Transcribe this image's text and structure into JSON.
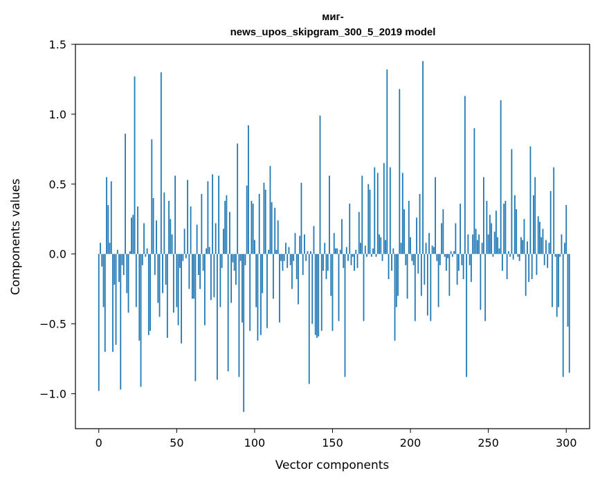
{
  "chart_data": {
    "type": "bar",
    "title_lines": [
      "миг-",
      "news_upos_skipgram_300_5_2019 model"
    ],
    "xlabel": "Vector components",
    "ylabel": "Components values",
    "xlim": [
      -15,
      315
    ],
    "ylim": [
      -1.25,
      1.5
    ],
    "x_ticks": [
      0,
      50,
      100,
      150,
      200,
      250,
      300
    ],
    "x_tick_labels": [
      "0",
      "50",
      "100",
      "150",
      "200",
      "250",
      "300"
    ],
    "y_ticks": [
      -1.0,
      -0.5,
      0.0,
      0.5,
      1.0,
      1.5
    ],
    "y_tick_labels": [
      "−1.0",
      "−0.5",
      "0.0",
      "0.5",
      "1.0",
      "1.5"
    ],
    "bar_color": "#1f77b4",
    "grid": false,
    "values": [
      -0.98,
      0.08,
      -0.09,
      -0.38,
      -0.7,
      0.55,
      0.35,
      0.08,
      0.52,
      -0.7,
      -0.22,
      -0.65,
      0.03,
      -0.2,
      -0.97,
      -0.08,
      -0.15,
      0.86,
      -0.28,
      -0.42,
      0.02,
      0.26,
      0.28,
      1.27,
      -0.38,
      0.34,
      -0.62,
      -0.95,
      -0.08,
      0.22,
      -0.02,
      0.04,
      -0.58,
      -0.55,
      0.82,
      0.4,
      -0.15,
      0.24,
      -0.35,
      -0.45,
      1.3,
      -0.28,
      0.44,
      -0.22,
      -0.6,
      0.38,
      0.25,
      0.14,
      -0.42,
      0.56,
      -0.38,
      -0.51,
      -0.1,
      -0.64,
      -0.05,
      0.18,
      -0.03,
      0.53,
      -0.25,
      0.34,
      -0.32,
      -0.32,
      -0.91,
      0.21,
      -0.15,
      -0.25,
      0.43,
      -0.12,
      -0.51,
      0.04,
      0.52,
      0.05,
      -0.33,
      0.57,
      -0.31,
      0.22,
      -0.9,
      0.56,
      -0.38,
      -0.1,
      0.18,
      0.38,
      0.42,
      -0.84,
      0.3,
      -0.35,
      -0.06,
      -0.12,
      -0.22,
      0.79,
      -0.88,
      -0.05,
      -0.49,
      -1.13,
      -0.08,
      0.49,
      0.92,
      -0.55,
      0.38,
      0.36,
      0.1,
      -0.38,
      -0.62,
      0.43,
      -0.58,
      -0.28,
      0.51,
      0.46,
      -0.53,
      0.03,
      0.63,
      0.37,
      -0.32,
      0.33,
      0.03,
      0.24,
      -0.49,
      -0.05,
      -0.12,
      -0.05,
      0.08,
      -0.1,
      0.05,
      -0.08,
      -0.25,
      -0.05,
      0.15,
      -0.18,
      -0.36,
      0.13,
      0.51,
      -0.15,
      0.14,
      -0.05,
      0.02,
      -0.93,
      0.02,
      -0.5,
      0.2,
      -0.58,
      -0.6,
      -0.59,
      0.99,
      -0.55,
      -0.12,
      0.08,
      -0.18,
      -0.12,
      0.56,
      -0.3,
      -0.55,
      0.15,
      0.04,
      0.04,
      -0.48,
      0.03,
      0.25,
      -0.1,
      -0.88,
      0.05,
      -0.05,
      0.36,
      -0.08,
      -0.02,
      -0.12,
      0.03,
      -0.1,
      0.3,
      0.08,
      0.56,
      -0.48,
      0.06,
      -0.02,
      0.5,
      0.46,
      -0.02,
      0.04,
      0.62,
      -0.02,
      0.58,
      0.14,
      0.12,
      -0.05,
      0.65,
      0.1,
      1.32,
      -0.18,
      0.62,
      -0.12,
      0.04,
      -0.62,
      -0.38,
      -0.3,
      1.18,
      0.08,
      0.58,
      0.32,
      -0.08,
      -0.32,
      0.38,
      0.12,
      -0.05,
      -0.08,
      -0.48,
      0.26,
      -0.14,
      0.43,
      -0.3,
      1.38,
      -0.22,
      0.08,
      -0.44,
      0.15,
      -0.48,
      0.06,
      0.05,
      0.55,
      -0.05,
      -0.38,
      -0.08,
      0.22,
      0.32,
      -0.02,
      -0.12,
      -0.03,
      -0.3,
      0.02,
      -0.02,
      0.02,
      0.22,
      -0.22,
      -0.12,
      0.36,
      -0.08,
      -0.18,
      1.13,
      -0.88,
      0.14,
      -0.08,
      -0.2,
      0.14,
      0.9,
      0.18,
      0.1,
      0.14,
      -0.4,
      0.08,
      0.55,
      -0.48,
      0.38,
      0.14,
      0.28,
      0.22,
      -0.02,
      0.16,
      0.31,
      0.12,
      0.04,
      1.1,
      -0.12,
      0.36,
      0.38,
      -0.18,
      0.02,
      -0.02,
      0.75,
      -0.04,
      0.42,
      0.32,
      -0.02,
      -0.05,
      0.12,
      0.1,
      0.25,
      -0.3,
      0.09,
      -0.2,
      0.77,
      -0.18,
      0.42,
      0.55,
      -0.15,
      0.27,
      0.23,
      0.12,
      0.18,
      -0.08,
      0.1,
      -0.1,
      0.08,
      0.45,
      -0.38,
      0.62,
      -0.02,
      -0.45,
      -0.38,
      -0.02,
      0.14,
      -0.88,
      0.08,
      0.35,
      -0.52,
      -0.85
    ]
  }
}
